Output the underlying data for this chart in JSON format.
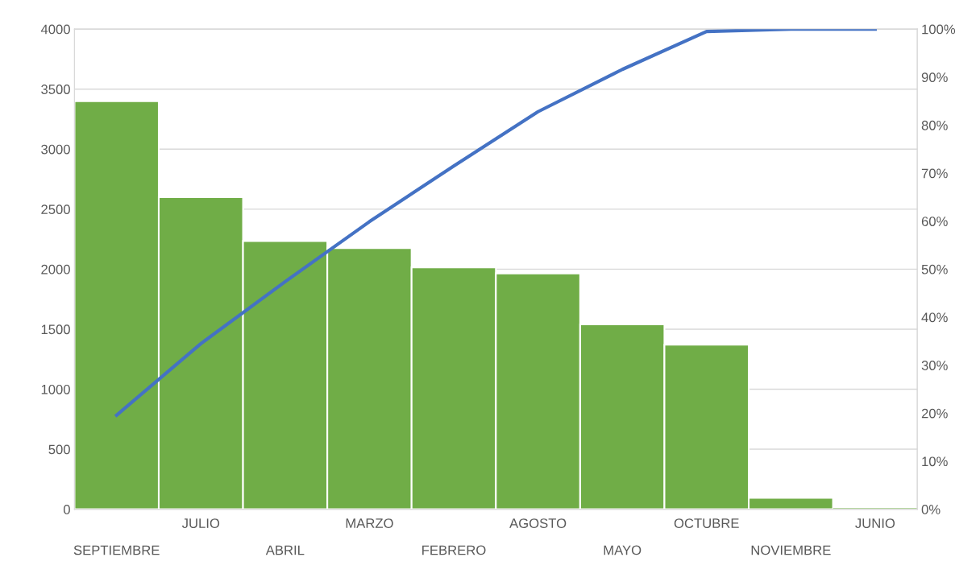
{
  "chart_data": {
    "type": "bar",
    "categories": [
      "SEPTIEMBRE",
      "JULIO",
      "ABRIL",
      "MARZO",
      "FEBRERO",
      "AGOSTO",
      "MAYO",
      "OCTUBRE",
      "NOVIEMBRE",
      "JUNIO"
    ],
    "series": [
      {
        "color": "#70ad47",
        "values": [
          3400,
          2600,
          2235,
          2175,
          2015,
          1965,
          1540,
          1370,
          95,
          0
        ]
      },
      {
        "type": "line",
        "axis": "y2",
        "color": "#4472c4",
        "values": [
          19.6,
          34.5,
          47.4,
          59.9,
          71.5,
          82.8,
          91.6,
          99.5,
          100,
          100
        ]
      }
    ],
    "ylim": [
      0,
      4000
    ],
    "yticks": [
      0,
      500,
      1000,
      1500,
      2000,
      2500,
      3000,
      3500,
      4000
    ],
    "y2lim": [
      0,
      100
    ],
    "y2ticks": [
      {
        "value": 0,
        "label": "0%"
      },
      {
        "value": 10,
        "label": "10%"
      },
      {
        "value": 20,
        "label": "20%"
      },
      {
        "value": 30,
        "label": "30%"
      },
      {
        "value": 40,
        "label": "40%"
      },
      {
        "value": 50,
        "label": "50%"
      },
      {
        "value": 60,
        "label": "60%"
      },
      {
        "value": 70,
        "label": "70%"
      },
      {
        "value": 80,
        "label": "80%"
      },
      {
        "value": 90,
        "label": "90%"
      },
      {
        "value": 100,
        "label": "100%"
      }
    ],
    "grid": "y",
    "line_style": "solid"
  }
}
